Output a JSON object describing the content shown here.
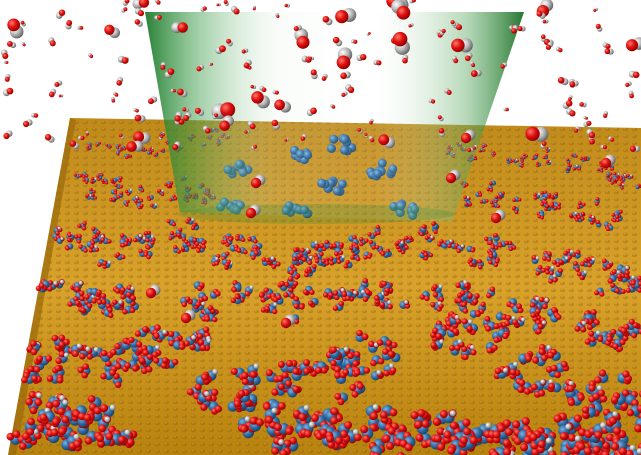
{
  "scene": {
    "description_visible_text": "",
    "colors": {
      "background": "#ffffff",
      "surface_gold": "#d39a1c",
      "surface_gold_light": "#e8b84a",
      "surface_gold_dark": "#9a6a0c",
      "carbon_blue": "#2f6fa8",
      "oxygen_red": "#e01010",
      "gas_gray": "#9a9a9a",
      "tip_green": "#1f7a2c",
      "cluster_blue": "#2a6c9c"
    }
  }
}
